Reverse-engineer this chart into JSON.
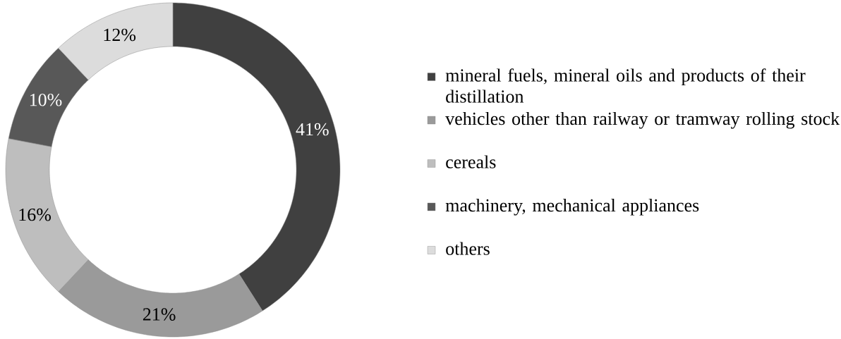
{
  "chart_data": {
    "type": "donut",
    "categories": [
      "mineral fuels, mineral oils and products of their distillation",
      "vehicles other than railway or tramway rolling stock",
      "cereals",
      "machinery, mechanical appliances",
      "others"
    ],
    "values": [
      41,
      21,
      16,
      10,
      12
    ],
    "colors": [
      "#404040",
      "#9a9a9a",
      "#bebebe",
      "#585858",
      "#dcdcdc"
    ],
    "value_labels": [
      "41%",
      "21%",
      "16%",
      "10%",
      "12%"
    ],
    "legend": "right"
  }
}
